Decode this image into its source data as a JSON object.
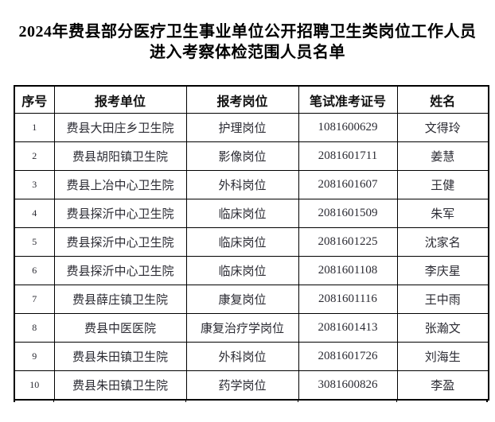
{
  "page": {
    "title_line1": "2024年费县部分医疗卫生事业单位公开招聘卫生类岗位工作人员",
    "title_line2": "进入考察体检范围人员名单"
  },
  "table": {
    "columns": [
      "序号",
      "报考单位",
      "报考岗位",
      "笔试准考证号",
      "姓名"
    ],
    "column_keys": [
      "index",
      "unit",
      "position",
      "ticket",
      "name"
    ],
    "rows": [
      [
        "1",
        "费县大田庄乡卫生院",
        "护理岗位",
        "1081600629",
        "文得玲"
      ],
      [
        "2",
        "费县胡阳镇卫生院",
        "影像岗位",
        "2081601711",
        "姜慧"
      ],
      [
        "3",
        "费县上冶中心卫生院",
        "外科岗位",
        "2081601607",
        "王健"
      ],
      [
        "4",
        "费县探沂中心卫生院",
        "临床岗位",
        "2081601509",
        "朱军"
      ],
      [
        "5",
        "费县探沂中心卫生院",
        "临床岗位",
        "2081601225",
        "沈家名"
      ],
      [
        "6",
        "费县探沂中心卫生院",
        "临床岗位",
        "2081601108",
        "李庆星"
      ],
      [
        "7",
        "费县薛庄镇卫生院",
        "康复岗位",
        "2081601116",
        "王中雨"
      ],
      [
        "8",
        "费县中医医院",
        "康复治疗学岗位",
        "2081601413",
        "张瀚文"
      ],
      [
        "9",
        "费县朱田镇卫生院",
        "外科岗位",
        "2081601726",
        "刘海生"
      ],
      [
        "10",
        "费县朱田镇卫生院",
        "药学岗位",
        "3081600826",
        "李盈"
      ]
    ]
  },
  "colors": {
    "background": "#ffffff",
    "border": "#000000",
    "title_text": "#000000",
    "body_text": "#2b2b33"
  }
}
